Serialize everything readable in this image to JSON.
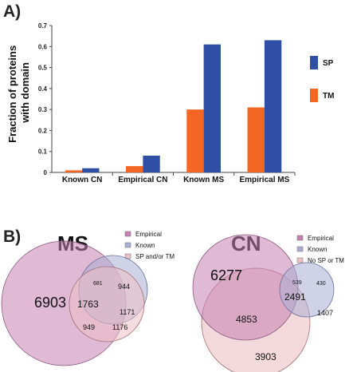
{
  "figure": {
    "panel_a_label": "A)",
    "panel_b_label": "B)"
  },
  "chart_data": [
    {
      "type": "bar",
      "title": "",
      "ylabel": "Fraction of proteins with domain",
      "ylabel_lines": [
        "Fraction of proteins",
        "with domain"
      ],
      "xlabel": "",
      "categories": [
        "Known CN",
        "Empirical CN",
        "Known MS",
        "Empirical MS"
      ],
      "series": [
        {
          "name": "TM",
          "color": "#f26522",
          "values": [
            0.01,
            0.03,
            0.3,
            0.31
          ]
        },
        {
          "name": "SP",
          "color": "#2e4fa3",
          "values": [
            0.02,
            0.08,
            0.61,
            0.63
          ]
        }
      ],
      "legend_order": [
        "SP",
        "TM"
      ],
      "legend_position": "right",
      "ylim": [
        0,
        0.7
      ],
      "yticks": [
        "0",
        "0.1",
        "0.2",
        "0.3",
        "0.4",
        "0.5",
        "0.6",
        "0.7"
      ],
      "grid": false
    },
    {
      "type": "venn",
      "title": "MS",
      "sets": [
        {
          "name": "Empirical",
          "color": "#c77fb0"
        },
        {
          "name": "Known",
          "color": "#a9aed6"
        },
        {
          "name": "SP and/or TM",
          "color": "#ecc0c4"
        }
      ],
      "regions": [
        {
          "label": "Empirical only",
          "value": 6903
        },
        {
          "label": "Empirical and Known",
          "value": 681
        },
        {
          "label": "Known only",
          "value": 944
        },
        {
          "label": "Empirical, Known and SP and/or TM",
          "value": 1763
        },
        {
          "label": "Known and SP and/or TM",
          "value": 1171
        },
        {
          "label": "Empirical and SP and/or TM",
          "value": 949
        },
        {
          "label": "SP and/or TM only",
          "value": 1176
        }
      ]
    },
    {
      "type": "venn",
      "title": "CN",
      "sets": [
        {
          "name": "Empirical",
          "color": "#c77fb0"
        },
        {
          "name": "Known",
          "color": "#a9aed6"
        },
        {
          "name": "No SP or TM",
          "color": "#ecc0c4"
        }
      ],
      "regions": [
        {
          "label": "Empirical only",
          "value": 6277
        },
        {
          "label": "Empirical and Known",
          "value": 539
        },
        {
          "label": "Known only",
          "value": 430
        },
        {
          "label": "Empirical, Known and No SP or TM",
          "value": 2491
        },
        {
          "label": "Known and No SP or TM",
          "value": 1407
        },
        {
          "label": "Empirical and No SP or TM",
          "value": 4853
        },
        {
          "label": "No SP or TM only",
          "value": 3903
        }
      ]
    }
  ]
}
